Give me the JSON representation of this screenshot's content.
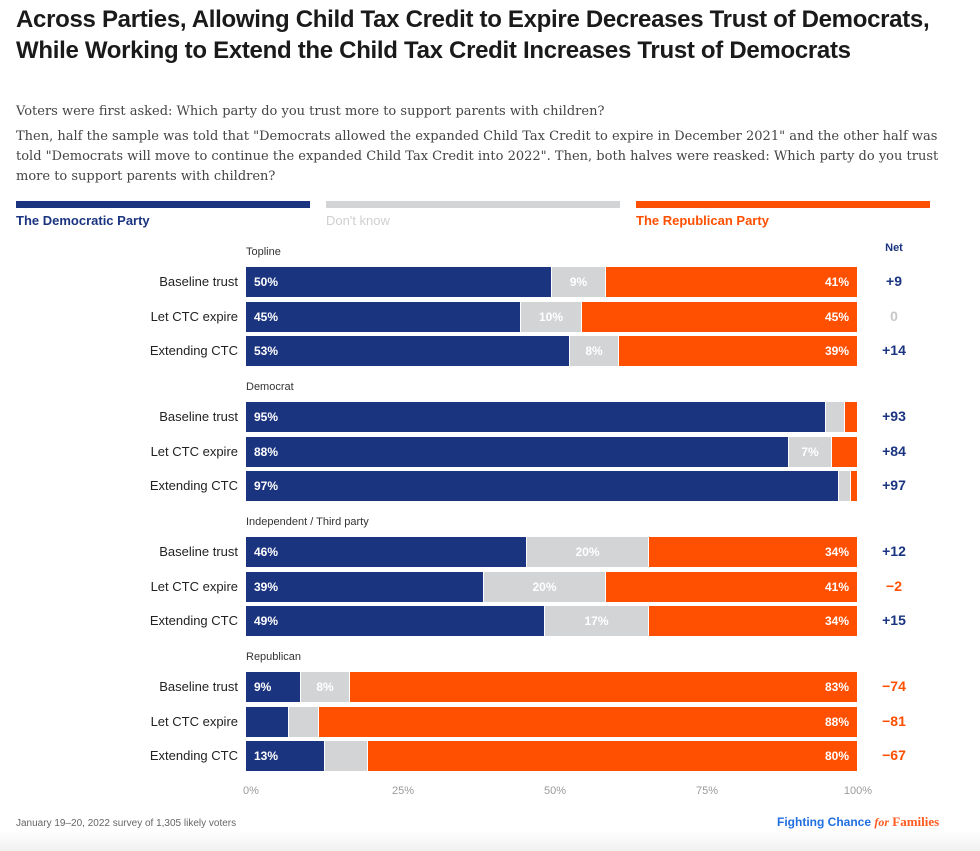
{
  "colors": {
    "democratic": "#1b3480",
    "dont_know": "#d3d4d6",
    "republican": "#ff4f00",
    "net_positive": "#1b3480",
    "net_negative": "#ff4f00",
    "net_zero": "#c8c8c8"
  },
  "title": "Across Parties, Allowing Child Tax Credit to Expire Decreases Trust of Democrats, While Working to Extend the Child Tax Credit Increases Trust of Democrats",
  "subtitle_1": "Voters were first asked: Which party do you trust more to support parents with children?",
  "subtitle_2": "Then, half the sample was told that \"Democrats allowed the expanded Child Tax Credit to expire in December 2021\" and the other half was told \"Democrats will move to continue the expanded Child Tax Credit into 2022\". Then, both halves were reasked: Which party do you trust more to support parents with children?",
  "footnote": "January 19–20, 2022 survey of 1,305 likely voters",
  "brand": {
    "part1": "Fighting Chance ",
    "part2": "for",
    "part3": " Families"
  },
  "chart_data": {
    "type": "bar",
    "orientation": "horizontal",
    "stacked": true,
    "title": "Across Parties, Allowing Child Tax Credit to Expire Decreases Trust of Democrats, While Working to Extend the Child Tax Credit Increases Trust of Democrats",
    "xlabel": "",
    "ylabel": "",
    "xlim": [
      0,
      100
    ],
    "x_ticks": [
      "0%",
      "25%",
      "50%",
      "75%",
      "100%"
    ],
    "grid": false,
    "legend_position": "top",
    "legend": [
      "The Democratic Party",
      "Don't know",
      "The Republican Party"
    ],
    "net_header": "Net",
    "groups": [
      {
        "name": "Topline",
        "rows": [
          {
            "label": "Baseline trust",
            "dem": 50,
            "dk": 9,
            "rep": 41,
            "dem_label": "50%",
            "dk_label": "9%",
            "rep_label": "41%",
            "net": "+9",
            "net_sign": "positive"
          },
          {
            "label": "Let CTC expire",
            "dem": 45,
            "dk": 10,
            "rep": 45,
            "dem_label": "45%",
            "dk_label": "10%",
            "rep_label": "45%",
            "net": "0",
            "net_sign": "zero"
          },
          {
            "label": "Extending CTC",
            "dem": 53,
            "dk": 8,
            "rep": 39,
            "dem_label": "53%",
            "dk_label": "8%",
            "rep_label": "39%",
            "net": "+14",
            "net_sign": "positive"
          }
        ]
      },
      {
        "name": "Democrat",
        "rows": [
          {
            "label": "Baseline trust",
            "dem": 95,
            "dk": 3,
            "rep": 2,
            "dem_label": "95%",
            "dk_label": "",
            "rep_label": "",
            "net": "+93",
            "net_sign": "positive"
          },
          {
            "label": "Let CTC expire",
            "dem": 88,
            "dk": 7,
            "rep": 4,
            "dem_label": "88%",
            "dk_label": "7%",
            "rep_label": "",
            "net": "+84",
            "net_sign": "positive"
          },
          {
            "label": "Extending CTC",
            "dem": 97,
            "dk": 2,
            "rep": 1,
            "dem_label": "97%",
            "dk_label": "",
            "rep_label": "",
            "net": "+97",
            "net_sign": "positive"
          }
        ]
      },
      {
        "name": "Independent / Third party",
        "rows": [
          {
            "label": "Baseline trust",
            "dem": 46,
            "dk": 20,
            "rep": 34,
            "dem_label": "46%",
            "dk_label": "20%",
            "rep_label": "34%",
            "net": "+12",
            "net_sign": "positive"
          },
          {
            "label": "Let CTC expire",
            "dem": 39,
            "dk": 20,
            "rep": 41,
            "dem_label": "39%",
            "dk_label": "20%",
            "rep_label": "41%",
            "net": "−2",
            "net_sign": "negative"
          },
          {
            "label": "Extending CTC",
            "dem": 49,
            "dk": 17,
            "rep": 34,
            "dem_label": "49%",
            "dk_label": "17%",
            "rep_label": "34%",
            "net": "+15",
            "net_sign": "positive"
          }
        ]
      },
      {
        "name": "Republican",
        "rows": [
          {
            "label": "Baseline trust",
            "dem": 9,
            "dk": 8,
            "rep": 83,
            "dem_label": "9%",
            "dk_label": "8%",
            "rep_label": "83%",
            "net": "−74",
            "net_sign": "negative"
          },
          {
            "label": "Let CTC expire",
            "dem": 7,
            "dk": 5,
            "rep": 88,
            "dem_label": "",
            "dk_label": "",
            "rep_label": "88%",
            "net": "−81",
            "net_sign": "negative"
          },
          {
            "label": "Extending CTC",
            "dem": 13,
            "dk": 7,
            "rep": 80,
            "dem_label": "13%",
            "dk_label": "",
            "rep_label": "80%",
            "net": "−67",
            "net_sign": "negative"
          }
        ]
      }
    ]
  }
}
